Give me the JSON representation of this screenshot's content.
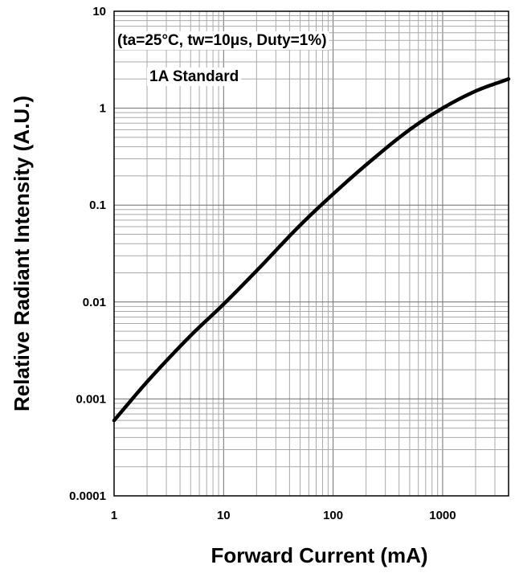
{
  "chart_data": {
    "type": "line",
    "xlabel": "Forward Current (mA)",
    "ylabel": "Relative Radiant Intensity (A.U.)",
    "x_scale": "log",
    "y_scale": "log",
    "xlim": [
      1,
      4000
    ],
    "ylim": [
      0.0001,
      10
    ],
    "x_tick_labels": [
      "1",
      "10",
      "100",
      "1000"
    ],
    "y_tick_labels": [
      "0.0001",
      "0.001",
      "0.01",
      "0.1",
      "1",
      "10"
    ],
    "grid": true,
    "annotations": [
      "(ta=25°C, tw=10μs, Duty=1%)",
      "1A Standard"
    ],
    "series": [
      {
        "x": [
          1,
          2,
          5,
          10,
          20,
          50,
          100,
          200,
          500,
          1000,
          2000,
          4000
        ],
        "y": [
          0.0006,
          0.0015,
          0.0045,
          0.0095,
          0.021,
          0.062,
          0.13,
          0.26,
          0.6,
          1.0,
          1.5,
          2.0
        ]
      }
    ]
  }
}
